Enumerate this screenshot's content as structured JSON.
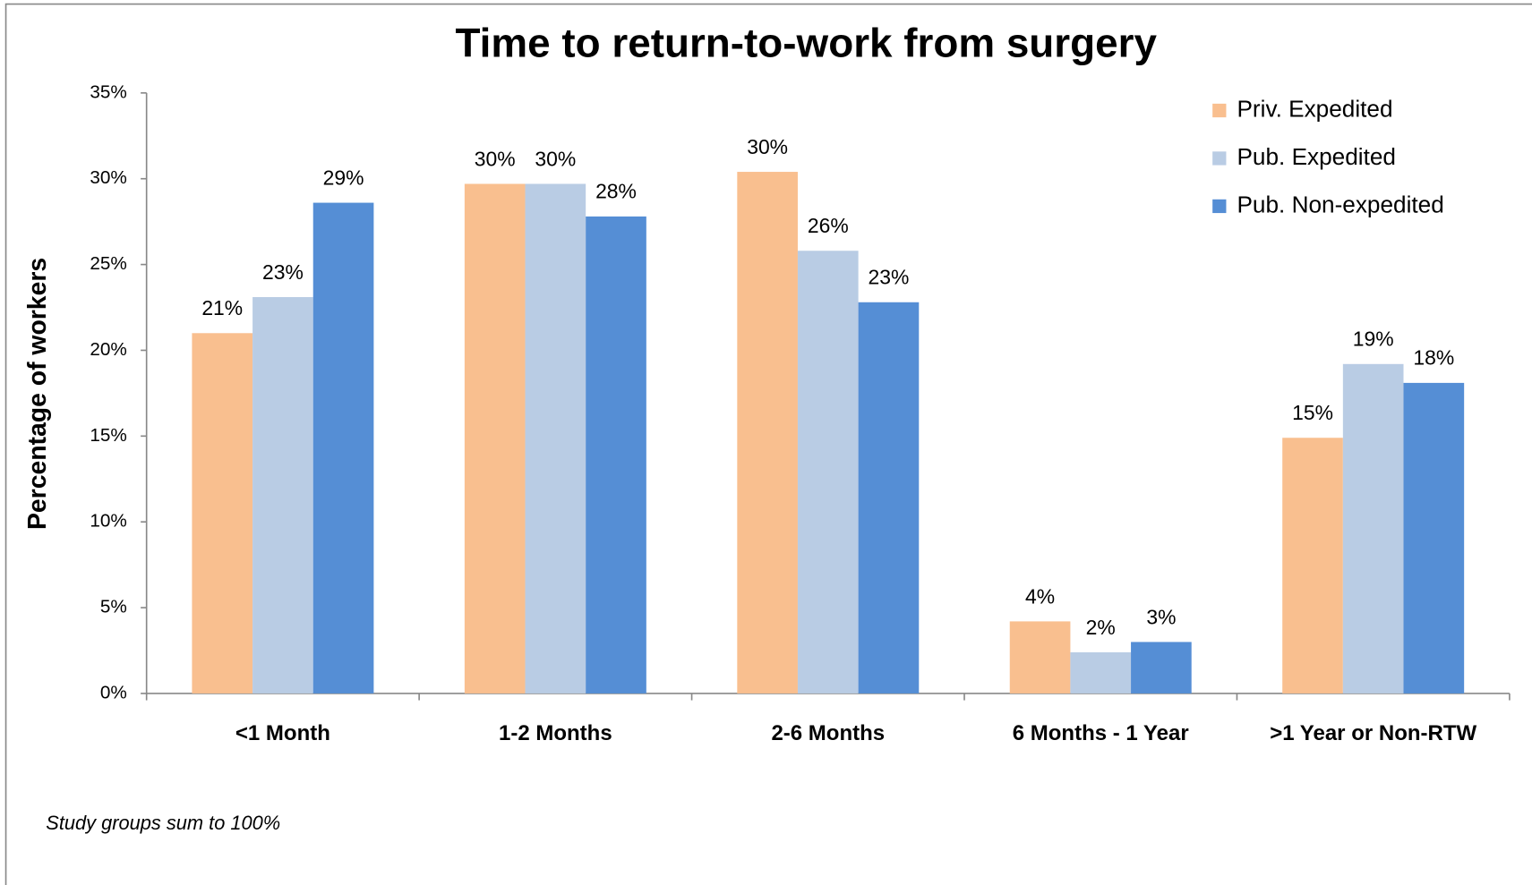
{
  "chart_data": {
    "type": "bar",
    "title": "Time to return-to-work from surgery",
    "y_label": "Percentage of workers",
    "annotation": "Study groups sum to 100%",
    "categories": [
      "<1 Month",
      "1-2 Months",
      "2-6 Months",
      "6 Months - 1 Year",
      ">1 Year or Non-RTW"
    ],
    "series": [
      {
        "name": "Priv. Expedited",
        "color": "#f9bf8f",
        "values": [
          21.0,
          29.7,
          30.4,
          4.2,
          14.9
        ],
        "value_labels": [
          "21%",
          "30%",
          "30%",
          "4%",
          "15%"
        ]
      },
      {
        "name": "Pub. Expedited",
        "color": "#b9cce4",
        "values": [
          23.1,
          29.7,
          25.8,
          2.4,
          19.2
        ],
        "value_labels": [
          "23%",
          "30%",
          "26%",
          "2%",
          "19%"
        ]
      },
      {
        "name": "Pub. Non-expedited",
        "color": "#558ed5",
        "values": [
          28.6,
          27.8,
          22.8,
          3.0,
          18.1
        ],
        "value_labels": [
          "29%",
          "28%",
          "23%",
          "3%",
          "18%"
        ]
      }
    ],
    "ylim": [
      0,
      35
    ],
    "yticks": [
      {
        "value": 0,
        "label": "0%"
      },
      {
        "value": 5,
        "label": "5%"
      },
      {
        "value": 10,
        "label": "10%"
      },
      {
        "value": 15,
        "label": "15%"
      },
      {
        "value": 20,
        "label": "20%"
      },
      {
        "value": 25,
        "label": "25%"
      },
      {
        "value": 30,
        "label": "30%"
      },
      {
        "value": 35,
        "label": "35%"
      }
    ],
    "legend": "top-right"
  }
}
